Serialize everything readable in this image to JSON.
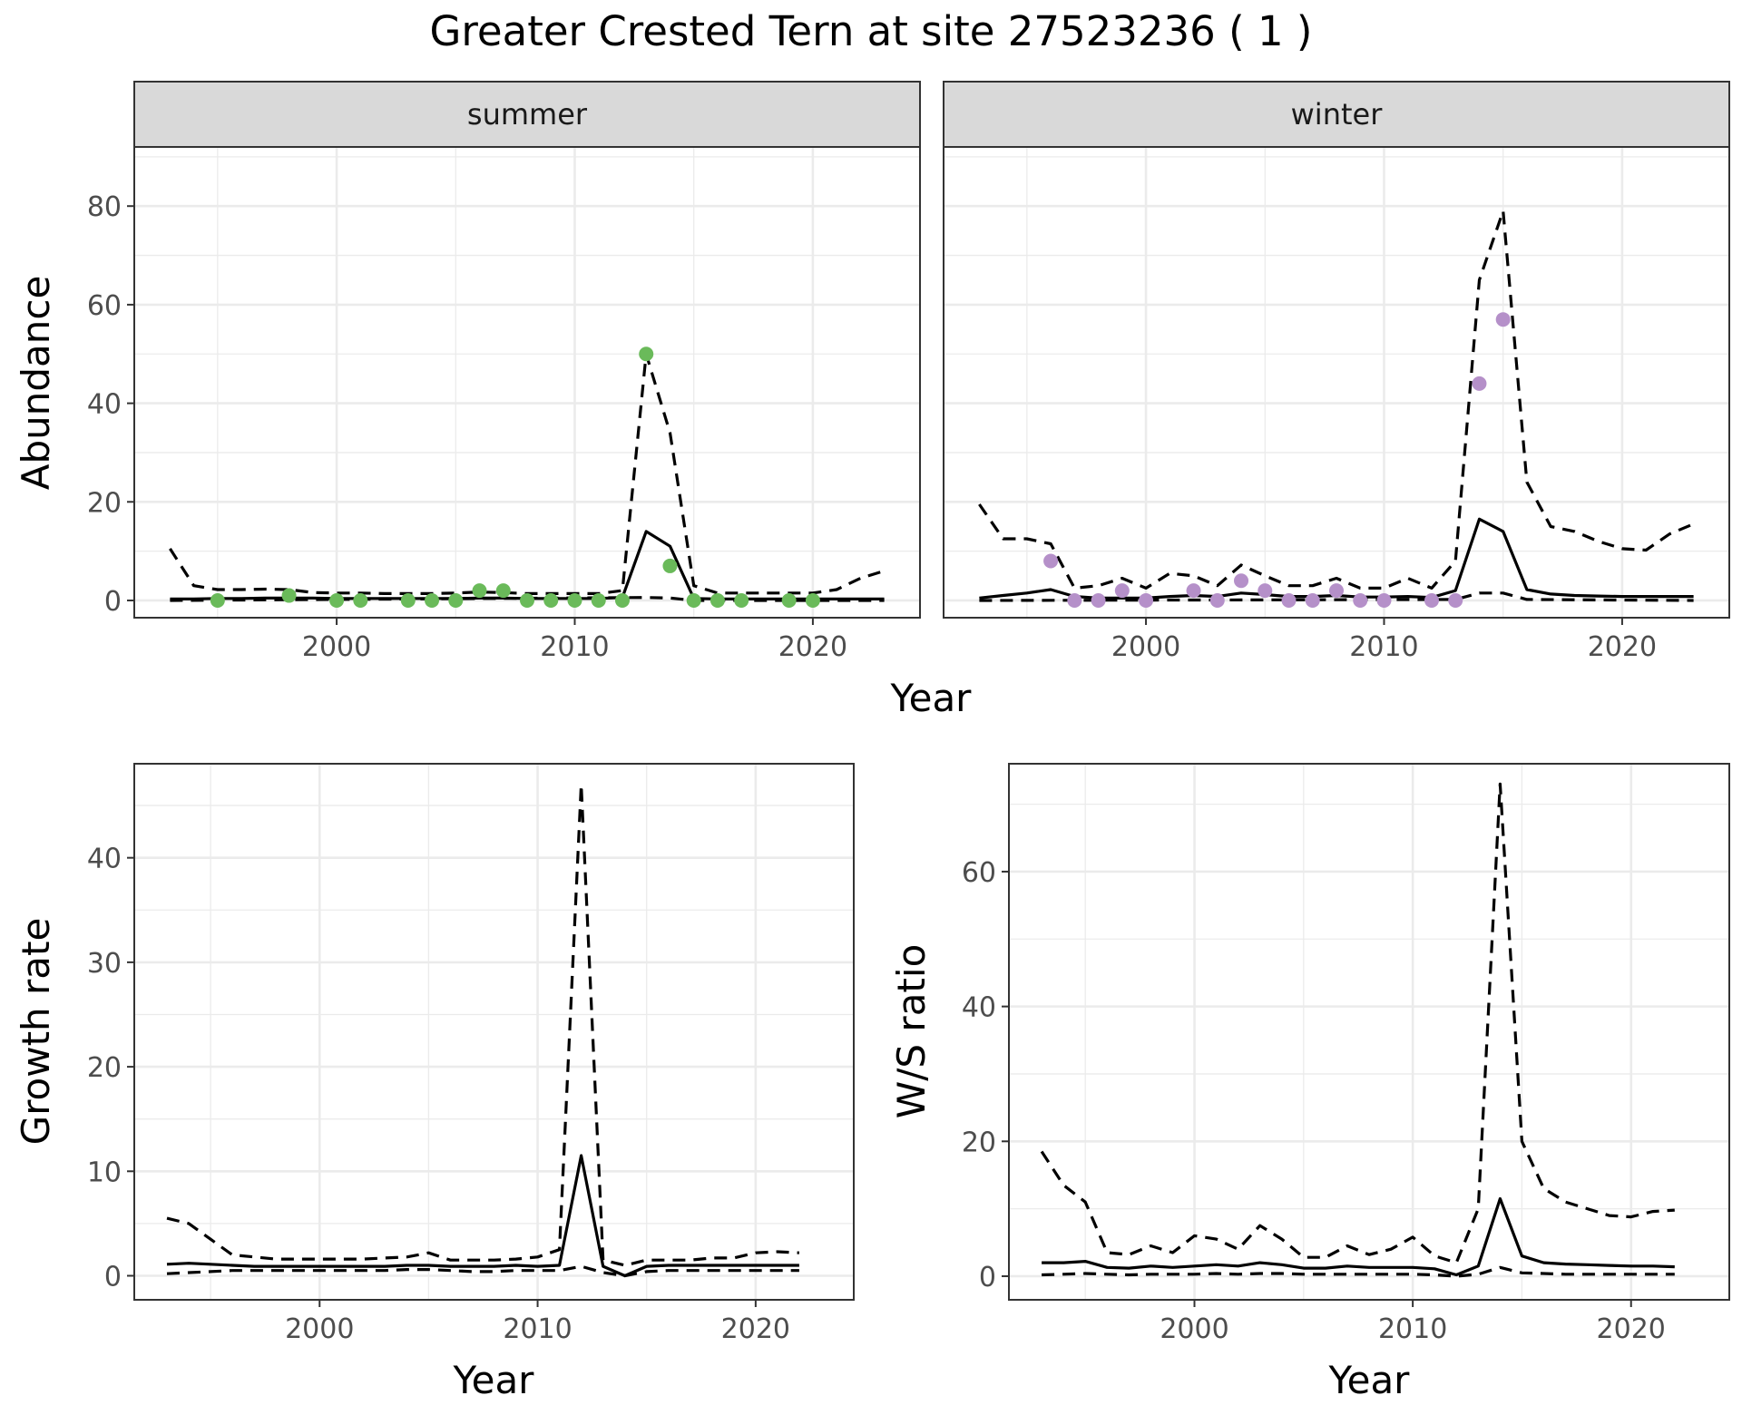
{
  "title": "Greater Crested Tern at site 27523236 ( 1 )",
  "chart_data": [
    {
      "type": "line",
      "facet": "summer",
      "ylabel": "Abundance",
      "xlabel": "Year",
      "xlim": [
        1991.5,
        2024.5
      ],
      "ylim": [
        -3.5,
        92
      ],
      "xticks": [
        2000,
        2010,
        2020
      ],
      "yticks": [
        0,
        20,
        40,
        60,
        80
      ],
      "grid": true,
      "point_color": "#6aba5a",
      "series": [
        {
          "role": "estimate",
          "x": [
            1993,
            1994,
            1995,
            1996,
            1997,
            1998,
            1999,
            2000,
            2001,
            2002,
            2003,
            2004,
            2005,
            2006,
            2007,
            2008,
            2009,
            2010,
            2011,
            2012,
            2013,
            2014,
            2015,
            2016,
            2017,
            2018,
            2019,
            2020,
            2021,
            2022,
            2023
          ],
          "y": [
            0.3,
            0.3,
            0.4,
            0.4,
            0.5,
            0.5,
            0.5,
            0.4,
            0.4,
            0.4,
            0.4,
            0.4,
            0.4,
            0.5,
            0.5,
            0.4,
            0.4,
            0.4,
            0.4,
            0.6,
            14,
            11,
            0.4,
            0.3,
            0.3,
            0.3,
            0.3,
            0.3,
            0.3,
            0.3,
            0.3
          ]
        },
        {
          "role": "upper",
          "x": [
            1993,
            1994,
            1995,
            1996,
            1997,
            1998,
            1999,
            2000,
            2001,
            2002,
            2003,
            2004,
            2005,
            2006,
            2007,
            2008,
            2009,
            2010,
            2011,
            2012,
            2013,
            2014,
            2015,
            2016,
            2017,
            2018,
            2019,
            2020,
            2021,
            2022,
            2023
          ],
          "y": [
            10.5,
            3,
            2.2,
            2.2,
            2.3,
            2.2,
            1.6,
            1.5,
            1.5,
            1.4,
            1.4,
            1.4,
            1.5,
            1.7,
            1.6,
            1.4,
            1.4,
            1.4,
            1.4,
            2,
            50,
            34,
            3,
            1.5,
            1.5,
            1.5,
            1.5,
            1.5,
            2.2,
            4.5,
            6
          ]
        },
        {
          "role": "lower",
          "x": [
            1993,
            2013,
            2014,
            2015,
            2023
          ],
          "y": [
            0,
            0.6,
            0.5,
            0,
            0
          ]
        }
      ],
      "points": {
        "x": [
          1995,
          1998,
          2000,
          2001,
          2003,
          2004,
          2005,
          2006,
          2007,
          2008,
          2009,
          2010,
          2011,
          2012,
          2013,
          2014,
          2015,
          2016,
          2017,
          2019,
          2020
        ],
        "y": [
          0,
          1,
          0,
          0,
          0,
          0,
          0,
          2,
          2,
          0,
          0,
          0,
          0,
          0,
          50,
          7,
          0,
          0,
          0,
          0,
          0
        ]
      }
    },
    {
      "type": "line",
      "facet": "winter",
      "ylabel": "Abundance",
      "xlabel": "Year",
      "xlim": [
        1991.5,
        2024.5
      ],
      "ylim": [
        -3.5,
        92
      ],
      "xticks": [
        2000,
        2010,
        2020
      ],
      "yticks": [
        0,
        20,
        40,
        60,
        80
      ],
      "grid": true,
      "point_color": "#b590c9",
      "series": [
        {
          "role": "estimate",
          "x": [
            1993,
            1994,
            1995,
            1996,
            1997,
            1998,
            1999,
            2000,
            2001,
            2002,
            2003,
            2004,
            2005,
            2006,
            2007,
            2008,
            2009,
            2010,
            2011,
            2012,
            2013,
            2014,
            2015,
            2016,
            2017,
            2018,
            2019,
            2020,
            2021,
            2022,
            2023
          ],
          "y": [
            0.5,
            1,
            1.5,
            2.2,
            0.8,
            0.5,
            0.5,
            0.5,
            0.8,
            1,
            0.8,
            1.5,
            1.2,
            0.8,
            0.8,
            1,
            0.7,
            0.7,
            0.8,
            0.6,
            2,
            16.5,
            14,
            2.2,
            1.3,
            1,
            0.9,
            0.8,
            0.8,
            0.8,
            0.8
          ]
        },
        {
          "role": "upper",
          "x": [
            1993,
            1994,
            1995,
            1996,
            1997,
            1998,
            1999,
            2000,
            2001,
            2002,
            2003,
            2004,
            2005,
            2006,
            2007,
            2008,
            2009,
            2010,
            2011,
            2012,
            2013,
            2014,
            2015,
            2016,
            2017,
            2018,
            2019,
            2020,
            2021,
            2022,
            2023
          ],
          "y": [
            19.5,
            12.5,
            12.5,
            11.5,
            2.5,
            3,
            4.5,
            2.5,
            5.5,
            5,
            3,
            7.2,
            5,
            3,
            3,
            4.5,
            2.5,
            2.5,
            4.5,
            2.5,
            8,
            65,
            79,
            24,
            15,
            14,
            12,
            10.5,
            10.2,
            13.5,
            15.5
          ]
        },
        {
          "role": "lower",
          "x": [
            1993,
            2013,
            2014,
            2015,
            2016,
            2023
          ],
          "y": [
            0,
            0.2,
            1.5,
            1.5,
            0.2,
            0
          ]
        }
      ],
      "points": {
        "x": [
          1996,
          1997,
          1998,
          1999,
          2000,
          2002,
          2003,
          2004,
          2005,
          2006,
          2007,
          2008,
          2009,
          2010,
          2012,
          2013,
          2014,
          2015
        ],
        "y": [
          8,
          0,
          0,
          2,
          0,
          2,
          0,
          4,
          2,
          0,
          0,
          2,
          0,
          0,
          0,
          0,
          44,
          57
        ]
      }
    },
    {
      "type": "line",
      "ylabel": "Growth rate",
      "xlabel": "Year",
      "xlim": [
        1991.5,
        2024.5
      ],
      "ylim": [
        -2.3,
        49
      ],
      "xticks": [
        2000,
        2010,
        2020
      ],
      "yticks": [
        0,
        10,
        20,
        30,
        40
      ],
      "grid": true,
      "series": [
        {
          "role": "estimate",
          "x": [
            1993,
            1994,
            1995,
            1996,
            1997,
            1998,
            1999,
            2000,
            2001,
            2002,
            2003,
            2004,
            2005,
            2006,
            2007,
            2008,
            2009,
            2010,
            2011,
            2012,
            2013,
            2014,
            2015,
            2016,
            2017,
            2018,
            2019,
            2020,
            2021,
            2022
          ],
          "y": [
            1.1,
            1.2,
            1.1,
            1,
            0.9,
            0.9,
            0.9,
            0.9,
            0.9,
            0.9,
            0.9,
            1,
            1,
            0.9,
            0.9,
            0.9,
            1,
            0.9,
            1,
            11.5,
            0.9,
            0,
            0.9,
            1,
            1,
            1,
            1,
            1,
            1,
            1
          ]
        },
        {
          "role": "upper",
          "x": [
            1993,
            1994,
            1995,
            1996,
            1997,
            1998,
            1999,
            2000,
            2001,
            2002,
            2003,
            2004,
            2005,
            2006,
            2007,
            2008,
            2009,
            2010,
            2011,
            2012,
            2013,
            2014,
            2015,
            2016,
            2017,
            2018,
            2019,
            2020,
            2021,
            2022
          ],
          "y": [
            5.5,
            5,
            3.5,
            2,
            1.8,
            1.6,
            1.6,
            1.6,
            1.6,
            1.6,
            1.7,
            1.8,
            2.2,
            1.5,
            1.5,
            1.5,
            1.6,
            1.8,
            2.5,
            47,
            1.5,
            1,
            1.5,
            1.5,
            1.5,
            1.7,
            1.7,
            2.2,
            2.3,
            2.2
          ]
        },
        {
          "role": "lower",
          "x": [
            1993,
            1994,
            1995,
            1996,
            1997,
            1998,
            1999,
            2000,
            2001,
            2002,
            2003,
            2004,
            2005,
            2006,
            2007,
            2008,
            2009,
            2010,
            2011,
            2012,
            2013,
            2014,
            2015,
            2016,
            2017,
            2018,
            2019,
            2020,
            2021,
            2022
          ],
          "y": [
            0.2,
            0.3,
            0.4,
            0.5,
            0.5,
            0.5,
            0.5,
            0.5,
            0.5,
            0.5,
            0.5,
            0.6,
            0.6,
            0.5,
            0.4,
            0.4,
            0.5,
            0.5,
            0.5,
            0.9,
            0.3,
            0,
            0.4,
            0.5,
            0.5,
            0.5,
            0.5,
            0.5,
            0.5,
            0.5
          ]
        }
      ]
    },
    {
      "type": "line",
      "ylabel": "W/S ratio",
      "xlabel": "Year",
      "xlim": [
        1991.5,
        2024.5
      ],
      "ylim": [
        -3.5,
        76
      ],
      "xticks": [
        2000,
        2010,
        2020
      ],
      "yticks": [
        0,
        20,
        40,
        60
      ],
      "grid": true,
      "series": [
        {
          "role": "estimate",
          "x": [
            1993,
            1994,
            1995,
            1996,
            1997,
            1998,
            1999,
            2000,
            2001,
            2002,
            2003,
            2004,
            2005,
            2006,
            2007,
            2008,
            2009,
            2010,
            2011,
            2012,
            2013,
            2014,
            2015,
            2016,
            2017,
            2018,
            2019,
            2020,
            2021,
            2022
          ],
          "y": [
            2,
            2,
            2.2,
            1.3,
            1.2,
            1.5,
            1.3,
            1.5,
            1.7,
            1.5,
            2,
            1.7,
            1.2,
            1.2,
            1.5,
            1.3,
            1.3,
            1.3,
            1.1,
            0.2,
            1.5,
            11.5,
            3,
            2,
            1.8,
            1.7,
            1.6,
            1.5,
            1.5,
            1.4
          ]
        },
        {
          "role": "upper",
          "x": [
            1993,
            1994,
            1995,
            1996,
            1997,
            1998,
            1999,
            2000,
            2001,
            2002,
            2003,
            2004,
            2005,
            2006,
            2007,
            2008,
            2009,
            2010,
            2011,
            2012,
            2013,
            2014,
            2015,
            2016,
            2017,
            2018,
            2019,
            2020,
            2021,
            2022
          ],
          "y": [
            18.5,
            13.5,
            11,
            3.5,
            3.2,
            4.5,
            3.5,
            6,
            5.5,
            4,
            7.5,
            5.5,
            2.8,
            2.8,
            4.5,
            3.2,
            4,
            5.8,
            3,
            2,
            10,
            73,
            20,
            13,
            11,
            10,
            9,
            8.8,
            9.6,
            9.8
          ]
        },
        {
          "role": "lower",
          "x": [
            1993,
            1994,
            1995,
            1996,
            1997,
            1998,
            1999,
            2000,
            2001,
            2002,
            2003,
            2004,
            2005,
            2006,
            2007,
            2008,
            2009,
            2010,
            2011,
            2012,
            2013,
            2014,
            2015,
            2016,
            2017,
            2018,
            2019,
            2020,
            2021,
            2022
          ],
          "y": [
            0.2,
            0.3,
            0.4,
            0.3,
            0.2,
            0.3,
            0.3,
            0.3,
            0.4,
            0.3,
            0.4,
            0.4,
            0.3,
            0.3,
            0.3,
            0.3,
            0.3,
            0.3,
            0.2,
            0,
            0.3,
            1.3,
            0.5,
            0.4,
            0.3,
            0.3,
            0.3,
            0.3,
            0.3,
            0.3
          ]
        }
      ]
    }
  ]
}
